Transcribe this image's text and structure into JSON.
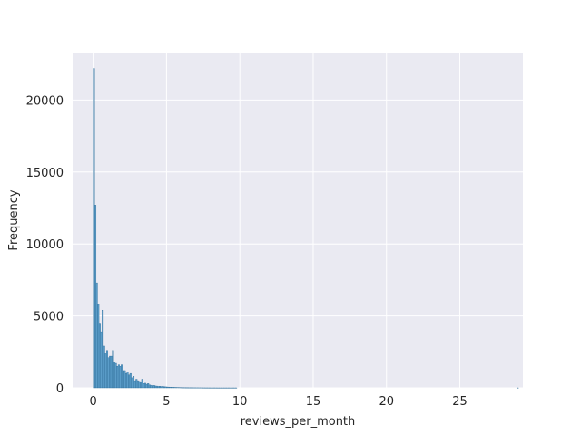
{
  "chart_data": {
    "type": "bar",
    "subtype": "histogram",
    "title": "",
    "xlabel": "reviews_per_month",
    "ylabel": "Frequency",
    "xlim": [
      -1.4,
      29.3
    ],
    "ylim": [
      0,
      23300
    ],
    "xticks": [
      0,
      5,
      10,
      15,
      20,
      25
    ],
    "yticks": [
      0,
      5000,
      10000,
      15000,
      20000
    ],
    "grid": true,
    "bin_width": 0.1,
    "bins_start": 0.0,
    "bar_color": "#5b9dc9",
    "bar_edge_color": "#2a6a96",
    "background_color": "#eaeaf2",
    "grid_color": "#ffffff",
    "values": [
      22200,
      12700,
      7300,
      5800,
      4500,
      3900,
      5400,
      2900,
      2400,
      2600,
      2100,
      2200,
      2200,
      2600,
      1800,
      1700,
      1500,
      1600,
      1500,
      1600,
      1200,
      1200,
      1000,
      1100,
      900,
      1000,
      700,
      800,
      500,
      600,
      500,
      450,
      400,
      600,
      300,
      320,
      250,
      300,
      200,
      180,
      150,
      170,
      130,
      120,
      100,
      110,
      90,
      100,
      80,
      70,
      60,
      55,
      50,
      45,
      40,
      35,
      30,
      28,
      25,
      22,
      20,
      18,
      16,
      14,
      12,
      10,
      10,
      9,
      8,
      7,
      6,
      6,
      5,
      5,
      4,
      4,
      3,
      3,
      3,
      2,
      2,
      2,
      2,
      2,
      1,
      1,
      1,
      1,
      1,
      1,
      1,
      1,
      1,
      1,
      1,
      1,
      1,
      1,
      0,
      0,
      0,
      0,
      0,
      0,
      0,
      0,
      0,
      0,
      0,
      0,
      0,
      0,
      0,
      0,
      0,
      0,
      0,
      0,
      0,
      0,
      0,
      0,
      0,
      0,
      0,
      0,
      0,
      0,
      0,
      0,
      0,
      0,
      0,
      0,
      0,
      0,
      0,
      0,
      0,
      0,
      0,
      0,
      0,
      0,
      0,
      0,
      0,
      0,
      0,
      0,
      0,
      0,
      0,
      0,
      0,
      0,
      0,
      0,
      0,
      0,
      0,
      0,
      0,
      0,
      0,
      0,
      0,
      0,
      0,
      0,
      0,
      0,
      0,
      0,
      0,
      0,
      0,
      0,
      0,
      0,
      0,
      0,
      0,
      0,
      0,
      0,
      0,
      0,
      0,
      0,
      0,
      0,
      0,
      0,
      0,
      0,
      0,
      0,
      0,
      0,
      0,
      0,
      0,
      0,
      0,
      0,
      0,
      0,
      0,
      0,
      0,
      0,
      0,
      0,
      0,
      0,
      0,
      0,
      0,
      0,
      0,
      0,
      0,
      0,
      0,
      0,
      0,
      0,
      0,
      0,
      0,
      0,
      0,
      0,
      0,
      0,
      0,
      0,
      0,
      0,
      0,
      0,
      0,
      0,
      0,
      0,
      0,
      0,
      0,
      0,
      0,
      0,
      0,
      0,
      0,
      0,
      0,
      0,
      0,
      0,
      0,
      0,
      0,
      0,
      0,
      0,
      0,
      0,
      0,
      0,
      0,
      0,
      0,
      0,
      0,
      0,
      0,
      0,
      0,
      0,
      0,
      0,
      0,
      0,
      0,
      0,
      0,
      0,
      0,
      1
    ]
  }
}
